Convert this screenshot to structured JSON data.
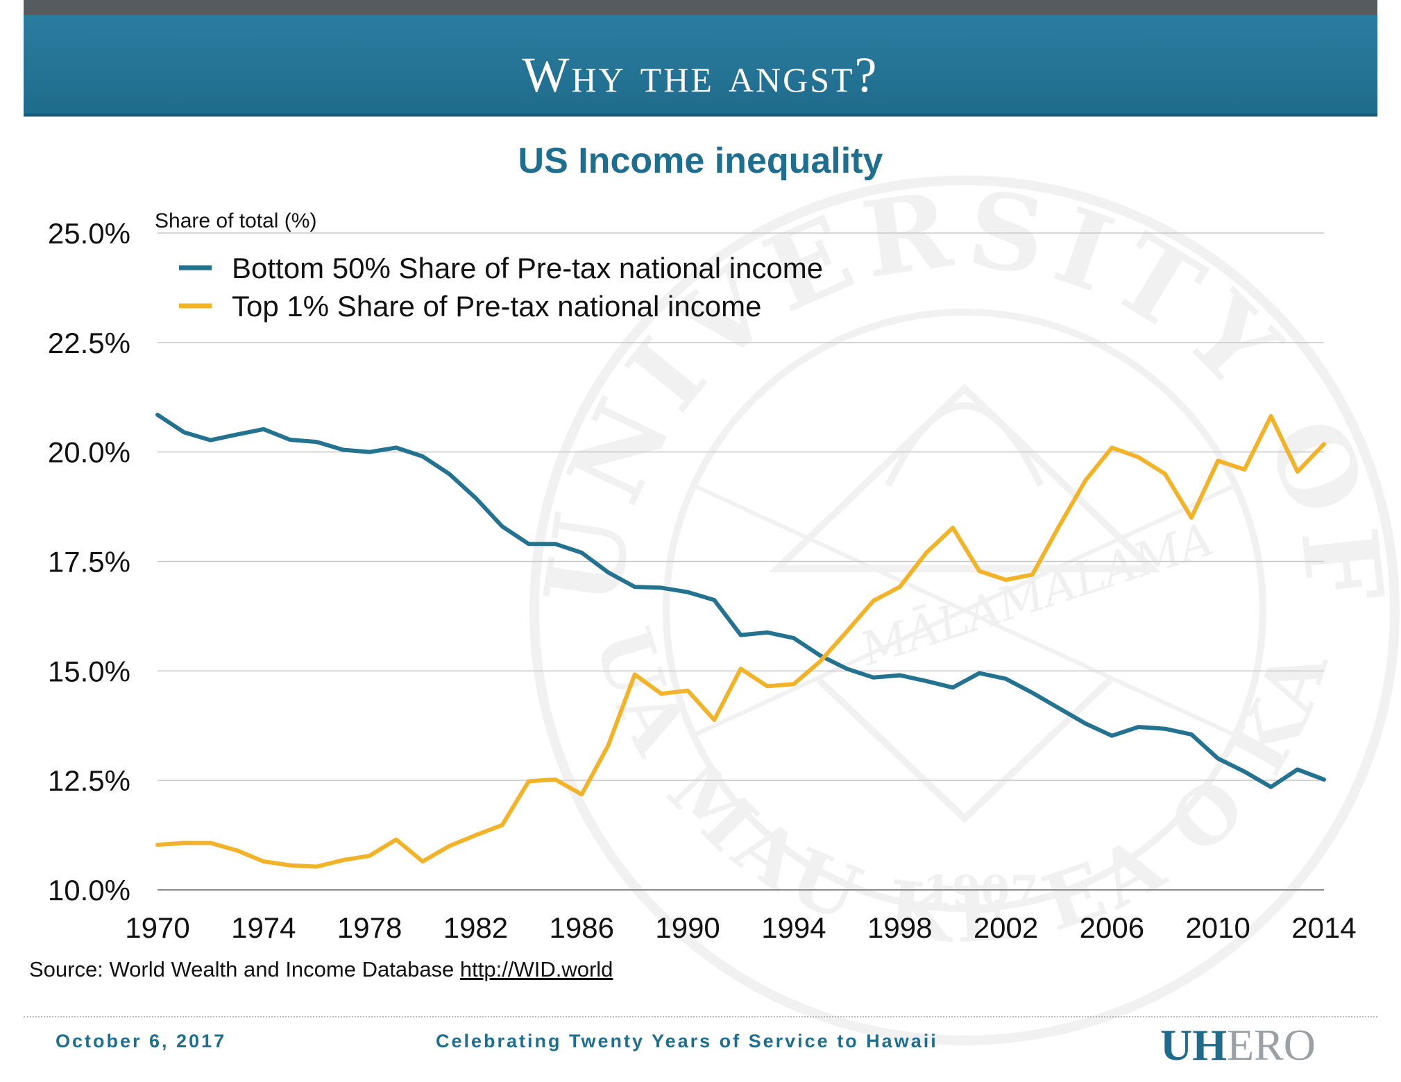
{
  "header": {
    "title": "Why the angst?"
  },
  "chart_data": {
    "type": "line",
    "title": "US Income inequality",
    "ylabel": "Share of total (%)",
    "xlabel": "",
    "xlim": [
      1970,
      2014
    ],
    "ylim": [
      10.0,
      25.0
    ],
    "x_ticks": [
      "1970",
      "1974",
      "1978",
      "1982",
      "1986",
      "1990",
      "1994",
      "1998",
      "2002",
      "2006",
      "2010",
      "2014"
    ],
    "y_ticks": [
      "10.0%",
      "12.5%",
      "15.0%",
      "17.5%",
      "20.0%",
      "22.5%",
      "25.0%"
    ],
    "grid": true,
    "legend_position": "top-left",
    "x": [
      1970,
      1971,
      1972,
      1973,
      1974,
      1975,
      1976,
      1977,
      1978,
      1979,
      1980,
      1981,
      1982,
      1983,
      1984,
      1985,
      1986,
      1987,
      1988,
      1989,
      1990,
      1991,
      1992,
      1993,
      1994,
      1995,
      1996,
      1997,
      1998,
      1999,
      2000,
      2001,
      2002,
      2003,
      2004,
      2005,
      2006,
      2007,
      2008,
      2009,
      2010,
      2011,
      2012,
      2013,
      2014
    ],
    "series": [
      {
        "name": "Bottom 50% Share of Pre-tax national income",
        "color": "#23728f",
        "values": [
          20.85,
          20.45,
          20.27,
          20.4,
          20.52,
          20.28,
          20.23,
          20.05,
          20.0,
          20.1,
          19.9,
          19.5,
          18.95,
          18.3,
          17.9,
          17.9,
          17.7,
          17.25,
          16.92,
          16.9,
          16.8,
          16.62,
          15.82,
          15.88,
          15.75,
          15.35,
          15.05,
          14.85,
          14.9,
          14.77,
          14.62,
          14.95,
          14.82,
          14.5,
          14.15,
          13.8,
          13.52,
          13.72,
          13.68,
          13.55,
          13.0,
          12.7,
          12.35,
          12.75,
          12.52
        ]
      },
      {
        "name": "Top 1% Share of Pre-tax national income",
        "color": "#f2b329",
        "values": [
          11.03,
          11.07,
          11.07,
          10.9,
          10.65,
          10.56,
          10.53,
          10.68,
          10.78,
          11.15,
          10.65,
          11.0,
          11.25,
          11.48,
          12.48,
          12.52,
          12.18,
          13.3,
          14.92,
          14.48,
          14.55,
          13.88,
          15.05,
          14.65,
          14.7,
          15.22,
          15.9,
          16.6,
          16.92,
          17.7,
          18.27,
          17.28,
          17.08,
          17.2,
          18.3,
          19.35,
          20.1,
          19.88,
          19.5,
          18.5,
          19.8,
          19.6,
          20.82,
          19.55,
          20.18
        ]
      }
    ]
  },
  "source": {
    "prefix": "Source: World Wealth and Income Database ",
    "link": "http://WID.world"
  },
  "footer": {
    "date": "October 6, 2017",
    "tagline": "Celebrating Twenty Years of Service to Hawaii",
    "logo_primary": "UH",
    "logo_secondary": "ERO"
  },
  "watermark": {
    "arc_text_top": "UNIVERSITY OF HAWAII",
    "arc_text_bottom": "UA MAU KE EA O KA ʻĀINA I KA",
    "band_text": "MĀLAMALAMA",
    "year": "1907"
  }
}
